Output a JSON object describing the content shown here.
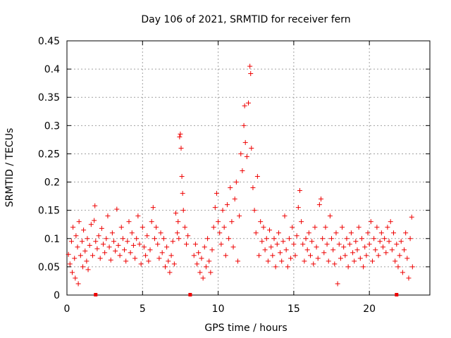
{
  "chart_data": {
    "type": "scatter",
    "title": "Day 106 of 2021, SRMTID for receiver fern",
    "xlabel": "GPS time / hours",
    "ylabel": "SRMTID / TECUs",
    "xlim": [
      0,
      24
    ],
    "ylim": [
      0,
      0.45
    ],
    "x_ticks": [
      0,
      5,
      10,
      15,
      20
    ],
    "x_tick_labels": [
      "0",
      "5",
      "10",
      "15",
      "20"
    ],
    "y_ticks": [
      0,
      0.05,
      0.1,
      0.15,
      0.2,
      0.25,
      0.3,
      0.35,
      0.4,
      0.45
    ],
    "y_tick_labels": [
      "0",
      "0.05",
      "0.1",
      "0.15",
      "0.2",
      "0.25",
      "0.3",
      "0.35",
      "0.4",
      "0.45"
    ],
    "grid": true,
    "marker": "+",
    "color": "#ee0000",
    "series": [
      {
        "name": "SRMTID",
        "points": [
          [
            0.1,
            0.072
          ],
          [
            0.2,
            0.055
          ],
          [
            0.3,
            0.095
          ],
          [
            0.35,
            0.04
          ],
          [
            0.4,
            0.12
          ],
          [
            0.5,
            0.065
          ],
          [
            0.55,
            0.03
          ],
          [
            0.6,
            0.105
          ],
          [
            0.7,
            0.085
          ],
          [
            0.75,
            0.02
          ],
          [
            0.8,
            0.13
          ],
          [
            0.9,
            0.07
          ],
          [
            1.0,
            0.095
          ],
          [
            1.05,
            0.05
          ],
          [
            1.1,
            0.115
          ],
          [
            1.2,
            0.078
          ],
          [
            1.3,
            0.06
          ],
          [
            1.35,
            0.1
          ],
          [
            1.4,
            0.045
          ],
          [
            1.5,
            0.088
          ],
          [
            1.6,
            0.125
          ],
          [
            1.7,
            0.07
          ],
          [
            1.8,
            0.132
          ],
          [
            1.85,
            0.158
          ],
          [
            1.9,
            0.095
          ],
          [
            2.0,
            0.082
          ],
          [
            2.1,
            0.105
          ],
          [
            2.2,
            0.065
          ],
          [
            2.3,
            0.118
          ],
          [
            2.4,
            0.09
          ],
          [
            2.5,
            0.075
          ],
          [
            2.6,
            0.1
          ],
          [
            2.7,
            0.14
          ],
          [
            2.8,
            0.085
          ],
          [
            2.9,
            0.062
          ],
          [
            3.0,
            0.11
          ],
          [
            3.1,
            0.095
          ],
          [
            3.2,
            0.078
          ],
          [
            3.3,
            0.152
          ],
          [
            3.4,
            0.088
          ],
          [
            3.5,
            0.07
          ],
          [
            3.6,
            0.12
          ],
          [
            3.7,
            0.1
          ],
          [
            3.8,
            0.08
          ],
          [
            3.9,
            0.06
          ],
          [
            4.0,
            0.095
          ],
          [
            4.1,
            0.13
          ],
          [
            4.2,
            0.075
          ],
          [
            4.3,
            0.11
          ],
          [
            4.4,
            0.088
          ],
          [
            4.5,
            0.065
          ],
          [
            4.6,
            0.1
          ],
          [
            4.7,
            0.14
          ],
          [
            4.8,
            0.09
          ],
          [
            4.9,
            0.055
          ],
          [
            5.0,
            0.12
          ],
          [
            5.1,
            0.085
          ],
          [
            5.2,
            0.07
          ],
          [
            5.3,
            0.105
          ],
          [
            5.4,
            0.06
          ],
          [
            5.5,
            0.08
          ],
          [
            5.6,
            0.13
          ],
          [
            5.7,
            0.155
          ],
          [
            5.8,
            0.1
          ],
          [
            5.9,
            0.12
          ],
          [
            6.0,
            0.09
          ],
          [
            6.1,
            0.065
          ],
          [
            6.2,
            0.11
          ],
          [
            6.3,
            0.075
          ],
          [
            6.4,
            0.1
          ],
          [
            6.5,
            0.05
          ],
          [
            6.6,
            0.085
          ],
          [
            6.7,
            0.06
          ],
          [
            6.8,
            0.04
          ],
          [
            6.9,
            0.07
          ],
          [
            7.0,
            0.095
          ],
          [
            7.1,
            0.055
          ],
          [
            7.2,
            0.145
          ],
          [
            7.3,
            0.11
          ],
          [
            7.35,
            0.13
          ],
          [
            7.4,
            0.1
          ],
          [
            7.45,
            0.28
          ],
          [
            7.5,
            0.285
          ],
          [
            7.55,
            0.26
          ],
          [
            7.6,
            0.21
          ],
          [
            7.65,
            0.18
          ],
          [
            7.7,
            0.15
          ],
          [
            7.8,
            0.12
          ],
          [
            7.9,
            0.09
          ],
          [
            8.0,
            0.105
          ],
          [
            8.4,
            0.07
          ],
          [
            8.5,
            0.09
          ],
          [
            8.6,
            0.055
          ],
          [
            8.7,
            0.075
          ],
          [
            8.8,
            0.04
          ],
          [
            8.9,
            0.065
          ],
          [
            9.0,
            0.03
          ],
          [
            9.1,
            0.085
          ],
          [
            9.2,
            0.05
          ],
          [
            9.3,
            0.1
          ],
          [
            9.4,
            0.06
          ],
          [
            9.5,
            0.04
          ],
          [
            9.6,
            0.08
          ],
          [
            9.7,
            0.12
          ],
          [
            9.8,
            0.155
          ],
          [
            9.9,
            0.18
          ],
          [
            10.0,
            0.13
          ],
          [
            10.1,
            0.11
          ],
          [
            10.2,
            0.09
          ],
          [
            10.3,
            0.15
          ],
          [
            10.4,
            0.12
          ],
          [
            10.5,
            0.07
          ],
          [
            10.6,
            0.16
          ],
          [
            10.7,
            0.1
          ],
          [
            10.8,
            0.19
          ],
          [
            10.9,
            0.13
          ],
          [
            11.0,
            0.085
          ],
          [
            11.1,
            0.17
          ],
          [
            11.2,
            0.2
          ],
          [
            11.3,
            0.06
          ],
          [
            11.4,
            0.14
          ],
          [
            11.5,
            0.25
          ],
          [
            11.6,
            0.22
          ],
          [
            11.7,
            0.3
          ],
          [
            11.75,
            0.335
          ],
          [
            11.8,
            0.27
          ],
          [
            11.9,
            0.245
          ],
          [
            12.0,
            0.34
          ],
          [
            12.1,
            0.405
          ],
          [
            12.15,
            0.392
          ],
          [
            12.2,
            0.26
          ],
          [
            12.3,
            0.19
          ],
          [
            12.4,
            0.15
          ],
          [
            12.5,
            0.11
          ],
          [
            12.6,
            0.21
          ],
          [
            12.7,
            0.07
          ],
          [
            12.8,
            0.13
          ],
          [
            12.9,
            0.095
          ],
          [
            13.0,
            0.12
          ],
          [
            13.1,
            0.08
          ],
          [
            13.2,
            0.1
          ],
          [
            13.3,
            0.06
          ],
          [
            13.4,
            0.115
          ],
          [
            13.5,
            0.085
          ],
          [
            13.6,
            0.07
          ],
          [
            13.7,
            0.1
          ],
          [
            13.8,
            0.05
          ],
          [
            13.9,
            0.09
          ],
          [
            14.0,
            0.11
          ],
          [
            14.1,
            0.075
          ],
          [
            14.2,
            0.06
          ],
          [
            14.3,
            0.095
          ],
          [
            14.4,
            0.14
          ],
          [
            14.5,
            0.08
          ],
          [
            14.6,
            0.05
          ],
          [
            14.7,
            0.1
          ],
          [
            14.8,
            0.065
          ],
          [
            14.9,
            0.12
          ],
          [
            15.0,
            0.09
          ],
          [
            15.1,
            0.07
          ],
          [
            15.2,
            0.105
          ],
          [
            15.3,
            0.155
          ],
          [
            15.4,
            0.185
          ],
          [
            15.5,
            0.13
          ],
          [
            15.6,
            0.09
          ],
          [
            15.7,
            0.06
          ],
          [
            15.8,
            0.1
          ],
          [
            15.9,
            0.08
          ],
          [
            16.0,
            0.11
          ],
          [
            16.1,
            0.07
          ],
          [
            16.2,
            0.095
          ],
          [
            16.3,
            0.055
          ],
          [
            16.4,
            0.12
          ],
          [
            16.5,
            0.085
          ],
          [
            16.6,
            0.065
          ],
          [
            16.7,
            0.16
          ],
          [
            16.8,
            0.17
          ],
          [
            16.9,
            0.1
          ],
          [
            17.0,
            0.075
          ],
          [
            17.1,
            0.12
          ],
          [
            17.2,
            0.09
          ],
          [
            17.3,
            0.06
          ],
          [
            17.4,
            0.14
          ],
          [
            17.5,
            0.1
          ],
          [
            17.6,
            0.08
          ],
          [
            17.7,
            0.055
          ],
          [
            17.8,
            0.11
          ],
          [
            17.9,
            0.02
          ],
          [
            18.0,
            0.09
          ],
          [
            18.1,
            0.065
          ],
          [
            18.2,
            0.12
          ],
          [
            18.3,
            0.085
          ],
          [
            18.4,
            0.07
          ],
          [
            18.5,
            0.1
          ],
          [
            18.6,
            0.05
          ],
          [
            18.7,
            0.09
          ],
          [
            18.8,
            0.11
          ],
          [
            18.9,
            0.075
          ],
          [
            19.0,
            0.06
          ],
          [
            19.1,
            0.095
          ],
          [
            19.2,
            0.08
          ],
          [
            19.3,
            0.12
          ],
          [
            19.4,
            0.065
          ],
          [
            19.5,
            0.1
          ],
          [
            19.6,
            0.05
          ],
          [
            19.7,
            0.085
          ],
          [
            19.8,
            0.07
          ],
          [
            19.9,
            0.11
          ],
          [
            20.0,
            0.09
          ],
          [
            20.1,
            0.13
          ],
          [
            20.2,
            0.06
          ],
          [
            20.3,
            0.1
          ],
          [
            20.4,
            0.08
          ],
          [
            20.5,
            0.12
          ],
          [
            20.6,
            0.07
          ],
          [
            20.7,
            0.095
          ],
          [
            20.8,
            0.11
          ],
          [
            20.9,
            0.085
          ],
          [
            21.0,
            0.1
          ],
          [
            21.1,
            0.075
          ],
          [
            21.2,
            0.12
          ],
          [
            21.3,
            0.095
          ],
          [
            21.4,
            0.13
          ],
          [
            21.5,
            0.08
          ],
          [
            21.6,
            0.11
          ],
          [
            21.7,
            0.06
          ],
          [
            21.8,
            0.09
          ],
          [
            21.9,
            0.05
          ],
          [
            22.0,
            0.07
          ],
          [
            22.1,
            0.095
          ],
          [
            22.2,
            0.04
          ],
          [
            22.3,
            0.08
          ],
          [
            22.4,
            0.11
          ],
          [
            22.5,
            0.065
          ],
          [
            22.6,
            0.03
          ],
          [
            22.7,
            0.1
          ],
          [
            22.8,
            0.138
          ],
          [
            22.85,
            0.05
          ]
        ]
      }
    ],
    "gap_markers_x": [
      1.9,
      8.15,
      21.8
    ]
  }
}
